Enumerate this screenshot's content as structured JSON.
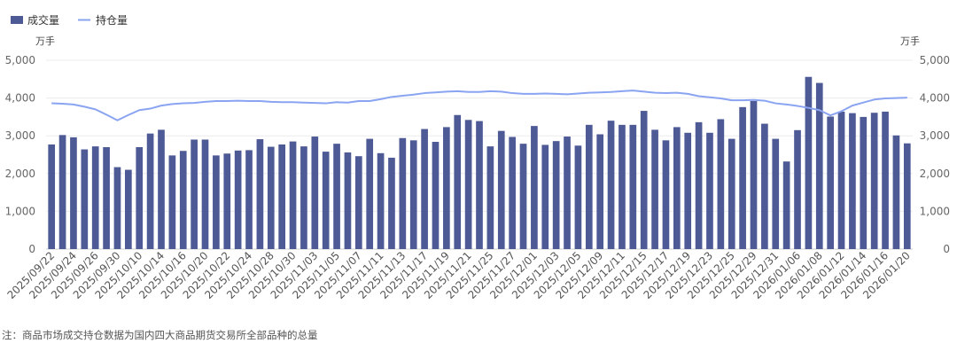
{
  "chart_data": {
    "type": "bar+line",
    "legend": [
      {
        "name": "成交量",
        "kind": "bar",
        "color": "#4e5a96"
      },
      {
        "name": "持仓量",
        "kind": "line",
        "color": "#8aa4f2"
      }
    ],
    "legend_position": "top-left",
    "y_left": {
      "unit": "万手",
      "ticks": [
        "0",
        "1,000",
        "2,000",
        "3,000",
        "4,000",
        "5,000"
      ],
      "range": [
        0,
        5000
      ]
    },
    "y_right": {
      "unit": "万手",
      "ticks": [
        "0",
        "1,000",
        "2,000",
        "3,000",
        "4,000",
        "5,000"
      ],
      "range": [
        0,
        5000
      ]
    },
    "grid": true,
    "x_tick_labels": [
      "2025/09/22",
      "2025/09/24",
      "2025/09/26",
      "2025/09/30",
      "2025/10/10",
      "2025/10/14",
      "2025/10/16",
      "2025/10/20",
      "2025/10/22",
      "2025/10/24",
      "2025/10/28",
      "2025/10/30",
      "2025/11/03",
      "2025/11/05",
      "2025/11/07",
      "2025/11/11",
      "2025/11/13",
      "2025/11/17",
      "2025/11/19",
      "2025/11/21",
      "2025/11/25",
      "2025/11/27",
      "2025/12/01",
      "2025/12/03",
      "2025/12/05",
      "2025/12/09",
      "2025/12/11",
      "2025/12/15",
      "2025/12/17",
      "2025/12/19",
      "2025/12/23",
      "2025/12/25",
      "2025/12/29",
      "2025/12/31",
      "2026/01/06",
      "2026/01/08",
      "2026/01/12",
      "2026/01/14",
      "2026/01/16",
      "2026/01/20"
    ],
    "volume": [
      2770,
      3020,
      2960,
      2640,
      2720,
      2700,
      2170,
      2100,
      2700,
      3060,
      3160,
      2480,
      2600,
      2900,
      2900,
      2480,
      2530,
      2610,
      2620,
      2910,
      2710,
      2770,
      2850,
      2720,
      2980,
      2580,
      2790,
      2560,
      2460,
      2920,
      2540,
      2420,
      2940,
      2880,
      3180,
      2840,
      3230,
      3550,
      3420,
      3390,
      2720,
      3130,
      2970,
      2790,
      3260,
      2760,
      2860,
      2980,
      2740,
      3290,
      3040,
      3400,
      3290,
      3290,
      3660,
      3160,
      2880,
      3230,
      3080,
      3360,
      3080,
      3440,
      2920,
      3760,
      3920,
      3320,
      2920,
      2320,
      3150,
      4560,
      4400,
      3510,
      3640,
      3600,
      3500,
      3610,
      3640,
      3010,
      2800
    ],
    "open_interest": [
      3860,
      3850,
      3830,
      3770,
      3700,
      3560,
      3410,
      3550,
      3680,
      3720,
      3800,
      3840,
      3860,
      3870,
      3900,
      3920,
      3920,
      3930,
      3920,
      3920,
      3900,
      3890,
      3890,
      3880,
      3870,
      3860,
      3890,
      3880,
      3920,
      3920,
      3970,
      4030,
      4060,
      4090,
      4130,
      4150,
      4170,
      4180,
      4160,
      4160,
      4180,
      4170,
      4130,
      4110,
      4110,
      4120,
      4110,
      4100,
      4120,
      4140,
      4150,
      4160,
      4180,
      4200,
      4170,
      4140,
      4130,
      4140,
      4110,
      4050,
      4020,
      3990,
      3940,
      3940,
      3950,
      3930,
      3860,
      3830,
      3790,
      3740,
      3680,
      3540,
      3650,
      3800,
      3880,
      3960,
      3990,
      4000,
      4010
    ]
  },
  "note": "注：商品市场成交持仓数据为国内四大商品期货交易所全部品种的总量"
}
